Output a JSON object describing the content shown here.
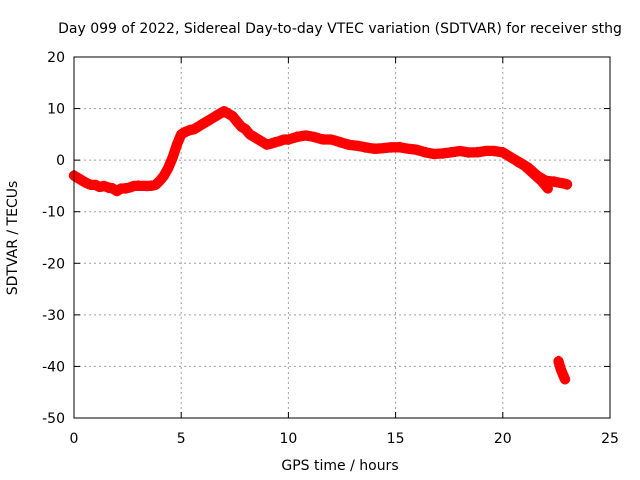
{
  "chart_data": {
    "type": "scatter",
    "title": "Day 099 of 2022, Sidereal Day-to-day VTEC variation (SDTVAR) for receiver sthg",
    "xlabel": "GPS time / hours",
    "ylabel": "SDTVAR / TECUs",
    "xlim": [
      0,
      25
    ],
    "ylim": [
      -50,
      20
    ],
    "xticks": [
      0,
      5,
      10,
      15,
      20,
      25
    ],
    "yticks": [
      -50,
      -40,
      -30,
      -20,
      -10,
      0,
      10,
      20
    ],
    "grid": true,
    "series": [
      {
        "name": "SDTVAR",
        "color": "#ff0000",
        "band_width_tecu": 2.0,
        "segments": [
          {
            "x": [
              0.0,
              0.2,
              0.4,
              0.6,
              0.8,
              1.0,
              1.2,
              1.4,
              1.6,
              1.8,
              2.0,
              2.2,
              2.4,
              2.6,
              2.8,
              3.0,
              3.2,
              3.4,
              3.6,
              3.8,
              4.0,
              4.2,
              4.4,
              4.6,
              4.8,
              5.0,
              5.2,
              5.4,
              5.6,
              5.8,
              6.0,
              6.2,
              6.4,
              6.6,
              6.8,
              7.0,
              7.2,
              7.4,
              7.6,
              7.8,
              8.0,
              8.2,
              8.4,
              8.6,
              8.8,
              9.0,
              9.2,
              9.4,
              9.6,
              9.8,
              10.0,
              10.4,
              10.8,
              11.2,
              11.6,
              12.0,
              12.4,
              12.8,
              13.2,
              13.6,
              14.0,
              14.4,
              14.8,
              15.2,
              15.6,
              16.0,
              16.4,
              16.8,
              17.2,
              17.6,
              18.0,
              18.4,
              18.8,
              19.2,
              19.6,
              20.0,
              20.4,
              20.8,
              21.2,
              21.6,
              22.0,
              22.4,
              22.8,
              23.0
            ],
            "y": [
              -3.0,
              -3.5,
              -4.0,
              -4.5,
              -4.8,
              -4.8,
              -5.2,
              -5.0,
              -5.3,
              -5.5,
              -6.0,
              -5.5,
              -5.5,
              -5.3,
              -5.0,
              -5.0,
              -5.0,
              -5.0,
              -5.0,
              -4.8,
              -4.0,
              -3.0,
              -1.5,
              0.5,
              3.0,
              5.0,
              5.5,
              5.8,
              6.0,
              6.5,
              7.0,
              7.5,
              8.0,
              8.5,
              9.0,
              9.5,
              9.0,
              8.5,
              7.5,
              6.5,
              6.0,
              5.0,
              4.5,
              4.0,
              3.5,
              3.0,
              3.2,
              3.5,
              3.7,
              4.0,
              4.0,
              4.5,
              4.8,
              4.5,
              4.0,
              4.0,
              3.5,
              3.0,
              2.8,
              2.5,
              2.2,
              2.3,
              2.5,
              2.5,
              2.2,
              2.0,
              1.5,
              1.2,
              1.3,
              1.5,
              1.8,
              1.5,
              1.5,
              1.8,
              1.8,
              1.5,
              0.5,
              -0.5,
              -1.5,
              -3.0,
              -4.0,
              -4.2,
              -4.5,
              -4.7
            ]
          },
          {
            "x": [
              20.7,
              21.0,
              21.4,
              21.8,
              22.1
            ],
            "y": [
              -0.3,
              -1.0,
              -2.5,
              -4.0,
              -5.5
            ]
          },
          {
            "x": [
              22.6,
              22.7,
              22.8,
              22.9
            ],
            "y": [
              -39.0,
              -40.5,
              -41.5,
              -42.5
            ]
          }
        ]
      }
    ]
  }
}
